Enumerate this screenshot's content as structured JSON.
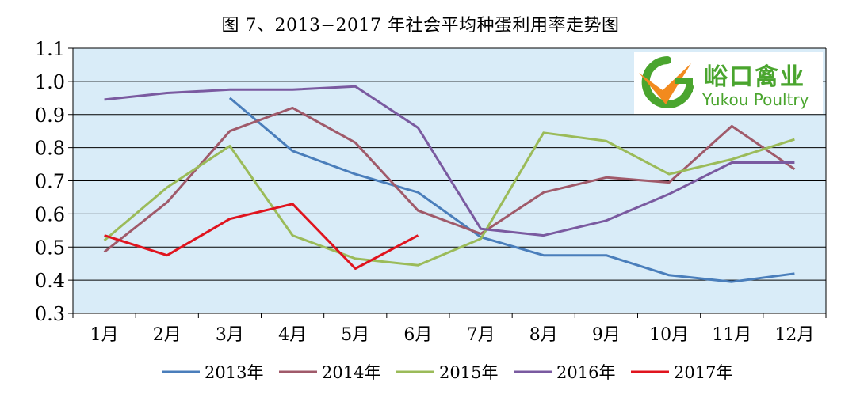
{
  "title": "图 7、2013−2017 年社会平均种蛋利用率走势图",
  "logo": {
    "name_cn": "峪口禽业",
    "name_en": "Yukou Poultry"
  },
  "colors": {
    "plot_bg": "#d9ecf8",
    "grid": "#000000"
  },
  "chart_data": {
    "type": "line",
    "title": "图 7、2013−2017 年社会平均种蛋利用率走势图",
    "xlabel": "",
    "ylabel": "",
    "categories": [
      "1月",
      "2月",
      "3月",
      "4月",
      "5月",
      "6月",
      "7月",
      "8月",
      "9月",
      "10月",
      "11月",
      "12月"
    ],
    "ylim": [
      0.3,
      1.1
    ],
    "yticks": [
      "0.3",
      "0.4",
      "0.5",
      "0.6",
      "0.7",
      "0.8",
      "0.9",
      "1.0",
      "1.1"
    ],
    "grid": true,
    "legend": "bottom",
    "series": [
      {
        "name": "2013年",
        "color": "#4a7ebb",
        "values": [
          null,
          null,
          0.95,
          0.79,
          0.72,
          0.665,
          0.53,
          0.475,
          0.475,
          0.415,
          0.395,
          0.42
        ]
      },
      {
        "name": "2014年",
        "color": "#a05a6a",
        "values": [
          0.485,
          0.635,
          0.85,
          0.92,
          0.815,
          0.61,
          0.54,
          0.665,
          0.71,
          0.695,
          0.865,
          0.735
        ]
      },
      {
        "name": "2015年",
        "color": "#9bbb59",
        "values": [
          0.52,
          0.68,
          0.805,
          0.535,
          0.465,
          0.445,
          0.525,
          0.845,
          0.82,
          0.72,
          0.765,
          0.825
        ]
      },
      {
        "name": "2016年",
        "color": "#7a5aa0",
        "values": [
          0.945,
          0.965,
          0.975,
          0.975,
          0.985,
          0.86,
          0.555,
          0.535,
          0.58,
          0.66,
          0.755,
          0.755
        ]
      },
      {
        "name": "2017年",
        "color": "#e0141e",
        "values": [
          0.535,
          0.475,
          0.585,
          0.63,
          0.435,
          0.535,
          null,
          null,
          null,
          null,
          null,
          null
        ]
      }
    ]
  }
}
